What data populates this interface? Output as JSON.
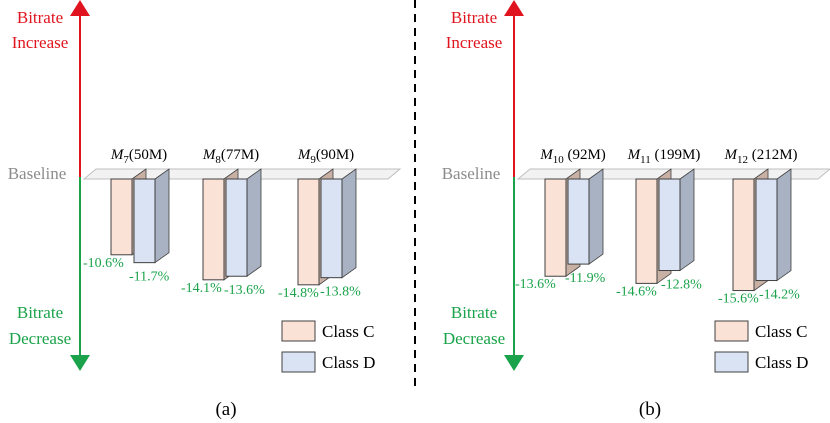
{
  "axis": {
    "up_line1": "Bitrate",
    "up_line2": "Increase",
    "down_line1": "Bitrate",
    "down_line2": "Decrease",
    "baseline": "Baseline"
  },
  "legend": {
    "class_c": "Class C",
    "class_d": "Class D"
  },
  "colors": {
    "class_c_fill": "#fbe2d6",
    "class_d_fill": "#dae3f3",
    "increase_arrow": "#e0141e",
    "decrease_arrow": "#1aa34a",
    "value_labels": "#1aa34a"
  },
  "chart_data": [
    {
      "type": "bar",
      "panel_label": "(a)",
      "series": [
        {
          "name": "Class C",
          "values": [
            -10.6,
            -14.1,
            -14.8
          ]
        },
        {
          "name": "Class D",
          "values": [
            -11.7,
            -13.6,
            -13.8
          ]
        }
      ],
      "groups": [
        {
          "sym": "M",
          "sub": "7",
          "rest": "(50M)",
          "labels": [
            "-10.6%",
            "-11.7%"
          ]
        },
        {
          "sym": "M",
          "sub": "8",
          "rest": "(77M)",
          "labels": [
            "-14.1%",
            "-13.6%"
          ]
        },
        {
          "sym": "M",
          "sub": "9",
          "rest": "(90M)",
          "labels": [
            "-14.8%",
            "-13.8%"
          ]
        }
      ],
      "ylim": [
        -16,
        0
      ]
    },
    {
      "type": "bar",
      "panel_label": "(b)",
      "series": [
        {
          "name": "Class C",
          "values": [
            -13.6,
            -14.6,
            -15.6
          ]
        },
        {
          "name": "Class D",
          "values": [
            -11.9,
            -12.8,
            -14.2
          ]
        }
      ],
      "groups": [
        {
          "sym": "M",
          "sub": "10",
          "rest": " (92M)",
          "labels": [
            "-13.6%",
            "-11.9%"
          ]
        },
        {
          "sym": "M",
          "sub": "11",
          "rest": " (199M)",
          "labels": [
            "-14.6%",
            "-12.8%"
          ]
        },
        {
          "sym": "M",
          "sub": "12",
          "rest": " (212M)",
          "labels": [
            "-15.6%",
            "-14.2%"
          ]
        }
      ],
      "ylim": [
        -16,
        0
      ]
    }
  ]
}
